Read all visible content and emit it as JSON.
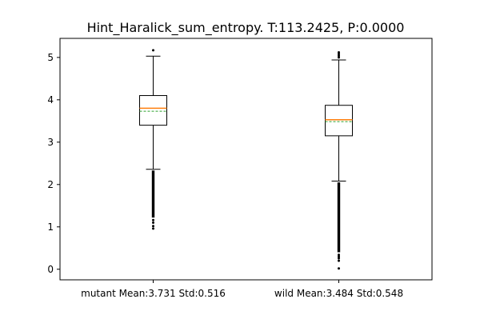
{
  "chart_data": {
    "type": "boxplot",
    "title": "Hint_Haralick_sum_entropy. T:113.2425, P:0.0000",
    "xlabel": "",
    "ylabel": "",
    "ylim": [
      -0.25,
      5.45
    ],
    "yticks": [
      0,
      1,
      2,
      3,
      4,
      5
    ],
    "grid": false,
    "colors": {
      "median": "#ff7f0e",
      "mean": "#2ca02c",
      "box": "#000000"
    },
    "categories": [
      "mutant Mean:3.731 Std:0.516",
      "wild Mean:3.484 Std:0.548"
    ],
    "boxes": [
      {
        "q1": 3.4,
        "median": 3.8,
        "q3": 4.1,
        "mean": 3.731,
        "whisker_low": 2.36,
        "whisker_high": 5.03,
        "outliers_high": [
          5.17
        ],
        "outlier_band_low": [
          1.22,
          2.33
        ],
        "outliers_low": [
          1.16,
          1.1,
          1.02,
          0.96
        ]
      },
      {
        "q1": 3.15,
        "median": 3.53,
        "q3": 3.87,
        "mean": 3.484,
        "whisker_low": 2.08,
        "whisker_high": 4.94,
        "outliers_high": [
          5.0,
          5.04,
          5.08,
          5.12
        ],
        "outlier_band_low": [
          0.4,
          2.05
        ],
        "outliers_low": [
          0.34,
          0.3,
          0.26,
          0.2,
          0.02
        ]
      }
    ]
  }
}
